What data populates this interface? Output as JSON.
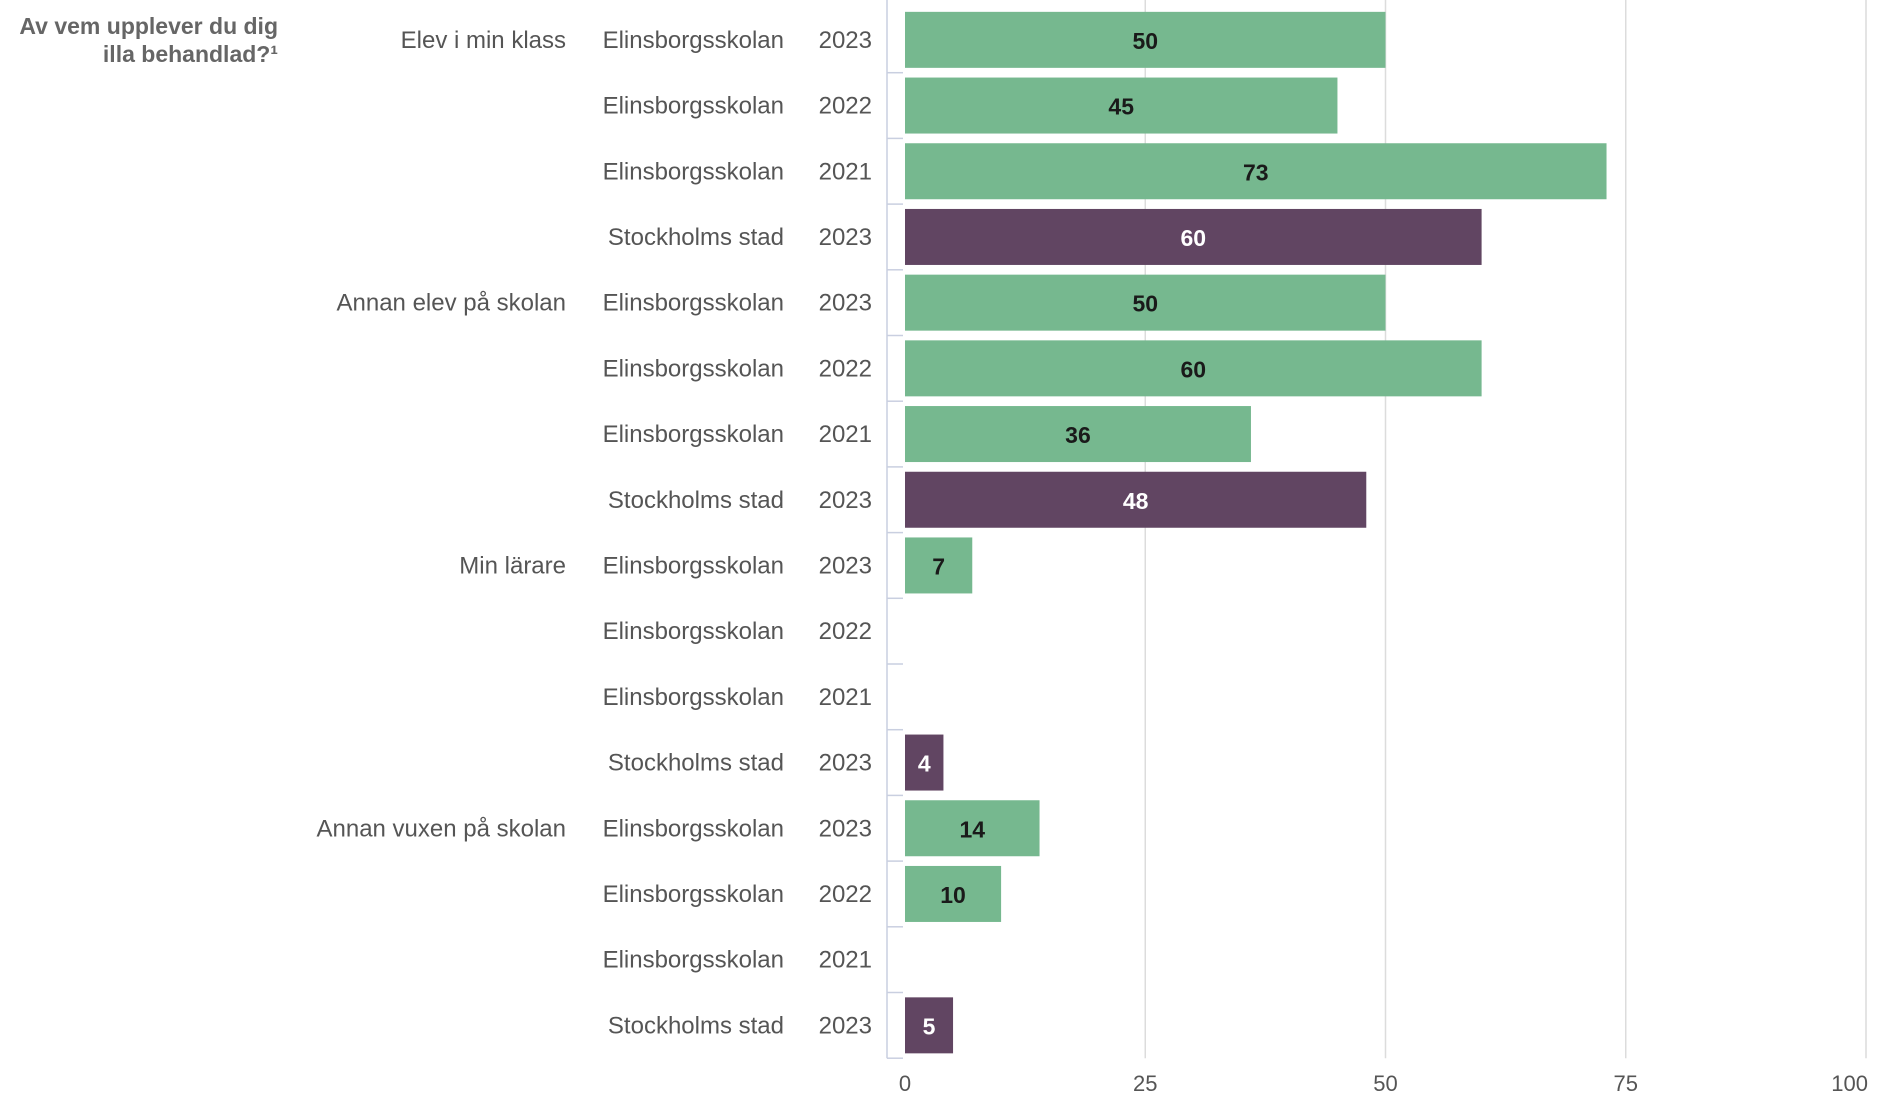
{
  "chart_data": {
    "type": "bar",
    "orientation": "horizontal",
    "title": "Av vem upplever du dig illa behandlad?¹",
    "title_lines": [
      "Av vem upplever du dig",
      "illa behandlad?¹"
    ],
    "xlim": [
      0,
      100
    ],
    "xticks": [
      "0",
      "25",
      "50",
      "75",
      "100"
    ],
    "grid": true,
    "colors": {
      "Elinsborgsskolan": "#76b88f",
      "Stockholms stad": "#614562"
    },
    "rows": [
      {
        "group": "Elev i min klass",
        "unit": "Elinsborgsskolan",
        "year": "2023",
        "value": 50
      },
      {
        "group": "",
        "unit": "Elinsborgsskolan",
        "year": "2022",
        "value": 45
      },
      {
        "group": "",
        "unit": "Elinsborgsskolan",
        "year": "2021",
        "value": 73
      },
      {
        "group": "",
        "unit": "Stockholms stad",
        "year": "2023",
        "value": 60
      },
      {
        "group": "Annan elev på skolan",
        "unit": "Elinsborgsskolan",
        "year": "2023",
        "value": 50
      },
      {
        "group": "",
        "unit": "Elinsborgsskolan",
        "year": "2022",
        "value": 60
      },
      {
        "group": "",
        "unit": "Elinsborgsskolan",
        "year": "2021",
        "value": 36
      },
      {
        "group": "",
        "unit": "Stockholms stad",
        "year": "2023",
        "value": 48
      },
      {
        "group": "Min lärare",
        "unit": "Elinsborgsskolan",
        "year": "2023",
        "value": 7
      },
      {
        "group": "",
        "unit": "Elinsborgsskolan",
        "year": "2022",
        "value": null
      },
      {
        "group": "",
        "unit": "Elinsborgsskolan",
        "year": "2021",
        "value": null
      },
      {
        "group": "",
        "unit": "Stockholms stad",
        "year": "2023",
        "value": 4
      },
      {
        "group": "Annan vuxen på skolan",
        "unit": "Elinsborgsskolan",
        "year": "2023",
        "value": 14
      },
      {
        "group": "",
        "unit": "Elinsborgsskolan",
        "year": "2022",
        "value": 10
      },
      {
        "group": "",
        "unit": "Elinsborgsskolan",
        "year": "2021",
        "value": null
      },
      {
        "group": "",
        "unit": "Stockholms stad",
        "year": "2023",
        "value": 5
      }
    ]
  }
}
